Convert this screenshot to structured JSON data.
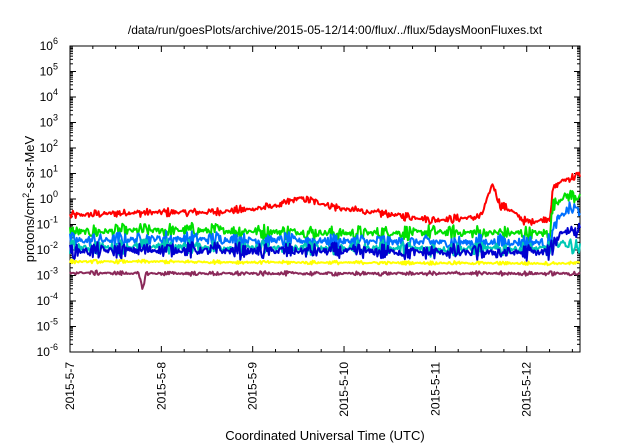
{
  "chart_data": {
    "type": "line",
    "title": "/data/run/goesPlots/archive/2015-05-12/14:00/flux/../flux/5daysMoonFluxes.txt",
    "xlabel": "Coordinated Universal Time (UTC)",
    "ylabel": "protons/cm2-s-sr-MeV",
    "ylabel_parts": {
      "base": "protons/cm",
      "sup": "2",
      "rest": "-s-sr-MeV"
    },
    "yscale": "log",
    "ylim": [
      1e-06,
      1000000.0
    ],
    "xlim": [
      "2015-05-07",
      "2015-05-12 14:00"
    ],
    "x_ticks": [
      "2015-5-7",
      "2015-5-8",
      "2015-5-9",
      "2015-5-10",
      "2015-5-11",
      "2015-5-12"
    ],
    "y_ticks": [
      {
        "base": "10",
        "exp": "6"
      },
      {
        "base": "10",
        "exp": "5"
      },
      {
        "base": "10",
        "exp": "4"
      },
      {
        "base": "10",
        "exp": "3"
      },
      {
        "base": "10",
        "exp": "2"
      },
      {
        "base": "10",
        "exp": "1"
      },
      {
        "base": "10",
        "exp": "0"
      },
      {
        "base": "10",
        "exp": "-1"
      },
      {
        "base": "10",
        "exp": "-2"
      },
      {
        "base": "10",
        "exp": "-3"
      },
      {
        "base": "10",
        "exp": "-4"
      },
      {
        "base": "10",
        "exp": "-5"
      },
      {
        "base": "10",
        "exp": "-6"
      }
    ],
    "grid": false,
    "legend": "none",
    "series": [
      {
        "color": "#ff0000",
        "x": [
          "2015-05-07 00:00",
          "2015-05-07 12:00",
          "2015-05-08 00:00",
          "2015-05-08 12:00",
          "2015-05-09 00:00",
          "2015-05-09 08:00",
          "2015-05-09 12:00",
          "2015-05-09 16:00",
          "2015-05-10 00:00",
          "2015-05-10 12:00",
          "2015-05-11 00:00",
          "2015-05-11 12:00",
          "2015-05-11 15:00",
          "2015-05-11 17:00",
          "2015-05-11 20:00",
          "2015-05-12 00:00",
          "2015-05-12 04:00",
          "2015-05-12 06:00",
          "2015-05-12 07:00",
          "2015-05-12 09:00",
          "2015-05-12 14:00"
        ],
        "y": [
          0.22,
          0.28,
          0.3,
          0.3,
          0.4,
          0.6,
          1.1,
          0.8,
          0.4,
          0.25,
          0.15,
          0.2,
          4.0,
          0.6,
          0.35,
          0.12,
          0.15,
          0.2,
          2.5,
          5.0,
          9.0
        ]
      },
      {
        "color": "#00e000",
        "x": [
          "2015-05-07 00:00",
          "2015-05-08 00:00",
          "2015-05-09 00:00",
          "2015-05-10 00:00",
          "2015-05-11 00:00",
          "2015-05-12 00:00",
          "2015-05-12 06:00",
          "2015-05-12 07:00",
          "2015-05-12 10:00",
          "2015-05-12 14:00"
        ],
        "y": [
          0.05,
          0.06,
          0.055,
          0.045,
          0.05,
          0.045,
          0.045,
          0.6,
          1.3,
          1.4
        ]
      },
      {
        "color": "#0070ff",
        "x": [
          "2015-05-07 00:00",
          "2015-05-08 00:00",
          "2015-05-09 00:00",
          "2015-05-10 00:00",
          "2015-05-11 00:00",
          "2015-05-12 00:00",
          "2015-05-12 06:00",
          "2015-05-12 08:00",
          "2015-05-12 11:00",
          "2015-05-12 14:00"
        ],
        "y": [
          0.022,
          0.028,
          0.025,
          0.022,
          0.02,
          0.02,
          0.02,
          0.15,
          0.4,
          0.35
        ]
      },
      {
        "color": "#00c8b4",
        "x": [
          "2015-05-07 00:00",
          "2015-05-08 00:00",
          "2015-05-09 00:00",
          "2015-05-10 00:00",
          "2015-05-11 00:00",
          "2015-05-12 00:00",
          "2015-05-12 06:00",
          "2015-05-12 09:00",
          "2015-05-12 14:00"
        ],
        "y": [
          0.012,
          0.014,
          0.012,
          0.012,
          0.011,
          0.011,
          0.011,
          0.02,
          0.012
        ]
      },
      {
        "color": "#0000d0",
        "x": [
          "2015-05-07 00:00",
          "2015-05-08 00:00",
          "2015-05-09 00:00",
          "2015-05-10 00:00",
          "2015-05-11 00:00",
          "2015-05-12 00:00",
          "2015-05-12 06:00",
          "2015-05-12 09:00",
          "2015-05-12 14:00"
        ],
        "y": [
          0.009,
          0.01,
          0.009,
          0.009,
          0.008,
          0.008,
          0.008,
          0.05,
          0.07
        ]
      },
      {
        "color": "#ffff00",
        "x": [
          "2015-05-07 00:00",
          "2015-05-08 00:00",
          "2015-05-09 00:00",
          "2015-05-10 00:00",
          "2015-05-11 00:00",
          "2015-05-12 00:00",
          "2015-05-12 14:00"
        ],
        "y": [
          0.0035,
          0.0035,
          0.0033,
          0.0032,
          0.0031,
          0.003,
          0.003
        ]
      },
      {
        "color": "#8b2a5a",
        "x": [
          "2015-05-07 00:00",
          "2015-05-07 18:00",
          "2015-05-07 19:00",
          "2015-05-07 20:00",
          "2015-05-08 00:00",
          "2015-05-09 00:00",
          "2015-05-10 00:00",
          "2015-05-11 00:00",
          "2015-05-12 00:00",
          "2015-05-12 14:00"
        ],
        "y": [
          0.0013,
          0.0012,
          0.0003,
          0.0012,
          0.0012,
          0.0012,
          0.0012,
          0.0012,
          0.0012,
          0.0012
        ]
      }
    ]
  }
}
